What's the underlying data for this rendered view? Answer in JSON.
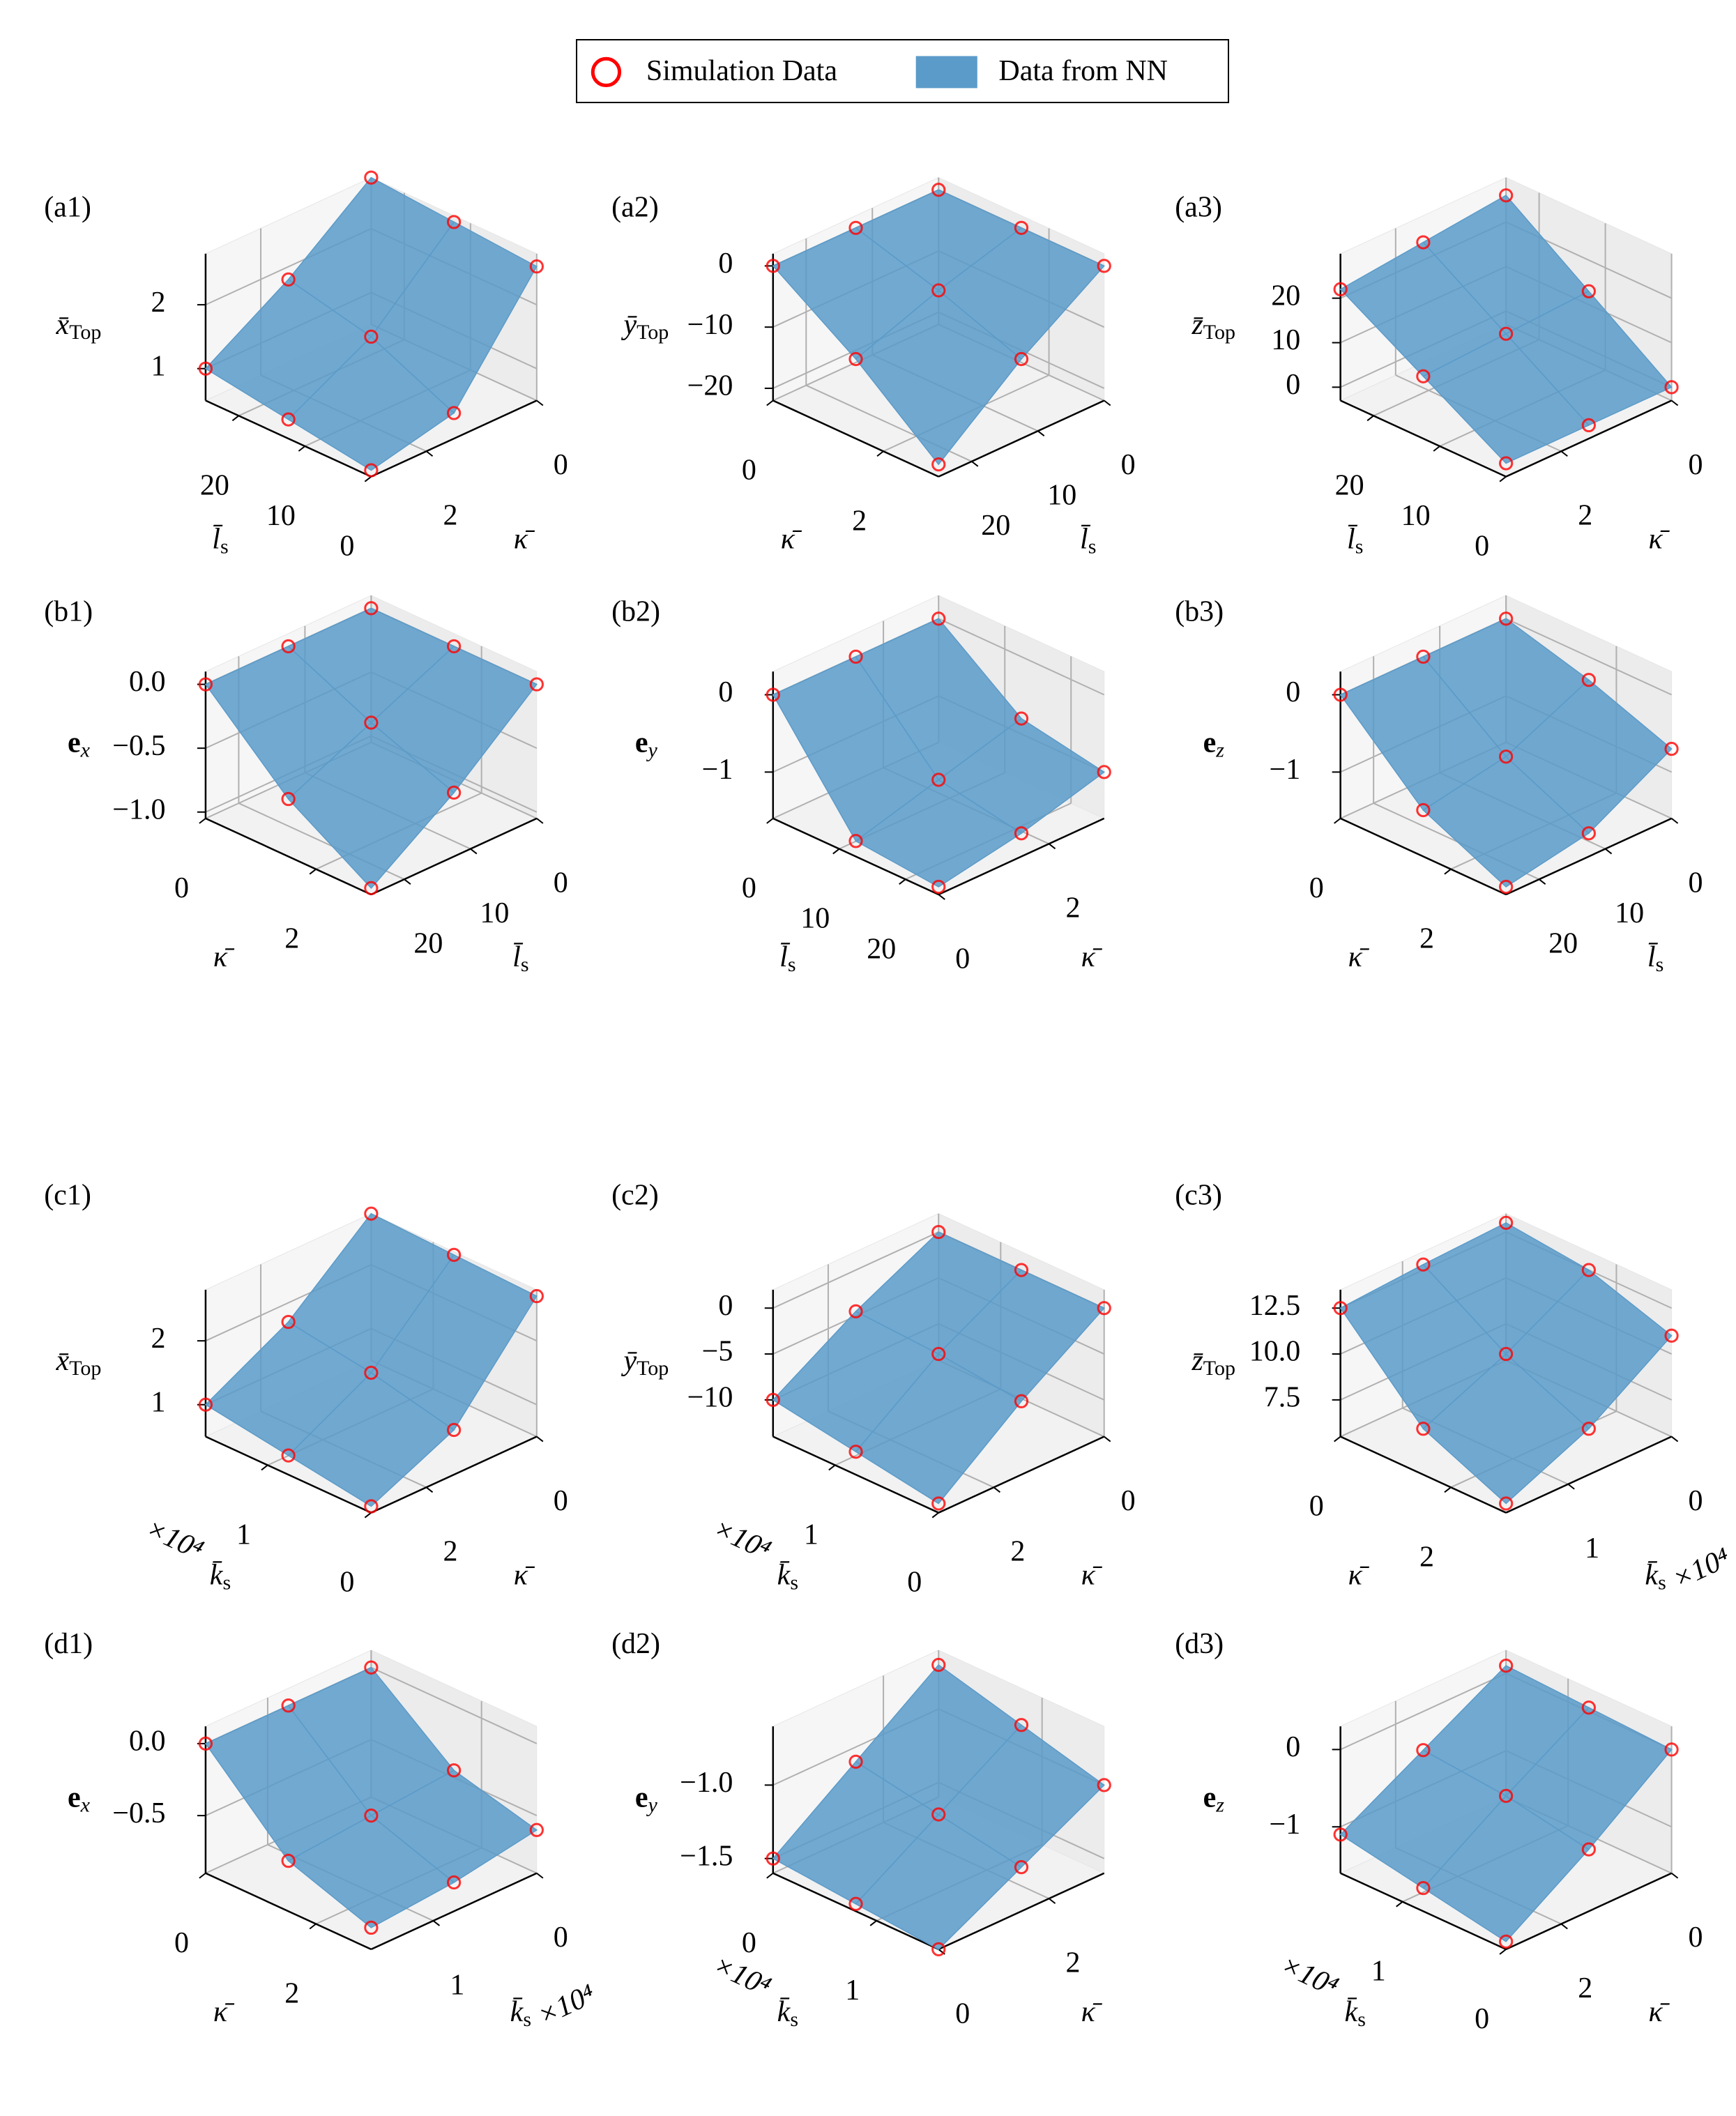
{
  "legend": {
    "items": [
      {
        "name": "Simulation Data",
        "color": "#ff0000"
      },
      {
        "name": "Data from NN",
        "color": "#5b9bc9"
      }
    ]
  },
  "chart_data": [
    {
      "type": "surface3d",
      "label": "(a1)",
      "xaxis": {
        "label": {
          "text": "l̄",
          "sub": "s"
        },
        "lim": [
          0,
          25
        ],
        "ticks": [
          0,
          10,
          20
        ]
      },
      "yaxis": {
        "label": {
          "text": "κ̄"
        },
        "lim": [
          3,
          0
        ],
        "ticks": [
          0,
          2
        ]
      },
      "zaxis": {
        "label": {
          "text": "x̄",
          "sub": "Top"
        },
        "lim": [
          0.5,
          2.8
        ],
        "ticks": [
          1,
          2
        ]
      },
      "x": [
        0,
        12.5,
        25
      ],
      "y": [
        0,
        1.5,
        3
      ],
      "z": [
        [
          2.6,
          0.9,
          0.6
        ],
        [
          2.7,
          1.5,
          0.8
        ],
        [
          2.8,
          1.8,
          1.0
        ]
      ]
    },
    {
      "type": "surface3d",
      "label": "(a2)",
      "xaxis": {
        "label": {
          "text": "κ̄"
        },
        "lim": [
          3,
          0
        ],
        "ticks": [
          0,
          2
        ]
      },
      "yaxis": {
        "label": {
          "text": "l̄",
          "sub": "s"
        },
        "lim": [
          25,
          0
        ],
        "ticks": [
          0,
          10,
          20
        ]
      },
      "zaxis": {
        "label": {
          "text": "ȳ",
          "sub": "Top"
        },
        "lim": [
          -22,
          2
        ],
        "ticks": [
          0,
          {
            "value": -10,
            "label": "−10"
          },
          {
            "value": -20,
            "label": "−20"
          }
        ]
      },
      "x": [
        0,
        1.5,
        3
      ],
      "y": [
        0,
        12.5,
        25
      ],
      "z": [
        [
          0,
          0,
          0
        ],
        [
          0,
          -4,
          -9
        ],
        [
          0,
          -9,
          -20
        ]
      ]
    },
    {
      "type": "surface3d",
      "label": "(a3)",
      "xaxis": {
        "label": {
          "text": "l̄",
          "sub": "s"
        },
        "lim": [
          0,
          25
        ],
        "ticks": [
          0,
          10,
          20
        ]
      },
      "yaxis": {
        "label": {
          "text": "κ̄"
        },
        "lim": [
          3,
          0
        ],
        "ticks": [
          0,
          2
        ]
      },
      "zaxis": {
        "label": {
          "text": "z̄",
          "sub": "Top"
        },
        "lim": [
          -3,
          30
        ],
        "ticks": [
          0,
          10,
          20
        ]
      },
      "x": [
        0,
        12.5,
        25
      ],
      "y": [
        0,
        1.5,
        3
      ],
      "z": [
        [
          0,
          0,
          0
        ],
        [
          13,
          12,
          11
        ],
        [
          26,
          24,
          22
        ]
      ]
    },
    {
      "type": "surface3d",
      "label": "(b1)",
      "xaxis": {
        "label": {
          "text": "κ̄"
        },
        "lim": [
          3,
          0
        ],
        "ticks": [
          0,
          2
        ]
      },
      "yaxis": {
        "label": {
          "text": "l̄",
          "sub": "s"
        },
        "lim": [
          25,
          0
        ],
        "ticks": [
          0,
          10,
          20
        ]
      },
      "zaxis": {
        "label": {
          "text": "e",
          "sub": "x",
          "bold": true
        },
        "lim": [
          -1.05,
          0.1
        ],
        "ticks": [
          {
            "value": 0,
            "label": "0.0"
          },
          {
            "value": -0.5,
            "label": "−0.5"
          },
          {
            "value": -1,
            "label": "−1.0"
          }
        ]
      },
      "x": [
        0,
        1.5,
        3
      ],
      "y": [
        0,
        12.5,
        25
      ],
      "z": [
        [
          0,
          0,
          0
        ],
        [
          0,
          -0.3,
          -0.6
        ],
        [
          0,
          -0.55,
          -1.0
        ]
      ]
    },
    {
      "type": "surface3d",
      "label": "(b2)",
      "xaxis": {
        "label": {
          "text": "l̄",
          "sub": "s"
        },
        "lim": [
          25,
          0
        ],
        "ticks": [
          0,
          10,
          20
        ]
      },
      "yaxis": {
        "label": {
          "text": "κ̄"
        },
        "lim": [
          0,
          3
        ],
        "ticks": [
          0,
          2
        ]
      },
      "zaxis": {
        "label": {
          "text": "e",
          "sub": "y",
          "bold": true
        },
        "lim": [
          -1.6,
          0.3
        ],
        "ticks": [
          0,
          {
            "value": -1,
            "label": "−1"
          }
        ]
      },
      "x": [
        0,
        12.5,
        25
      ],
      "y": [
        0,
        1.5,
        3
      ],
      "z": [
        [
          0,
          0,
          0
        ],
        [
          -1.4,
          -1.1,
          -0.8
        ],
        [
          -1.5,
          -1.3,
          -1.0
        ]
      ]
    },
    {
      "type": "surface3d",
      "label": "(b3)",
      "xaxis": {
        "label": {
          "text": "κ̄"
        },
        "lim": [
          3,
          0
        ],
        "ticks": [
          0,
          2
        ]
      },
      "yaxis": {
        "label": {
          "text": "l̄",
          "sub": "s"
        },
        "lim": [
          25,
          0
        ],
        "ticks": [
          0,
          10,
          20
        ]
      },
      "zaxis": {
        "label": {
          "text": "e",
          "sub": "z",
          "bold": true
        },
        "lim": [
          -1.6,
          0.3
        ],
        "ticks": [
          0,
          {
            "value": -1,
            "label": "−1"
          }
        ]
      },
      "x": [
        0,
        1.5,
        3
      ],
      "y": [
        0,
        12.5,
        25
      ],
      "z": [
        [
          0,
          0,
          0
        ],
        [
          -0.3,
          -0.8,
          -1.0
        ],
        [
          -0.7,
          -1.3,
          -1.5
        ]
      ]
    },
    {
      "type": "surface3d",
      "label": "(c1)",
      "xaxis": {
        "label": {
          "text": "k̄",
          "sub": "s"
        },
        "lim": [
          0,
          1.6
        ],
        "ticks": [
          0,
          1
        ],
        "multiplier": "×10⁴"
      },
      "yaxis": {
        "label": {
          "text": "κ̄"
        },
        "lim": [
          3,
          0
        ],
        "ticks": [
          0,
          2
        ]
      },
      "zaxis": {
        "label": {
          "text": "x̄",
          "sub": "Top"
        },
        "lim": [
          0.5,
          2.8
        ],
        "ticks": [
          1,
          2
        ]
      },
      "x": [
        0,
        0.8,
        1.6
      ],
      "y": [
        0,
        1.5,
        3
      ],
      "z": [
        [
          2.7,
          1.2,
          0.6
        ],
        [
          2.75,
          1.5,
          0.8
        ],
        [
          2.8,
          1.7,
          1.0
        ]
      ]
    },
    {
      "type": "surface3d",
      "label": "(c2)",
      "xaxis": {
        "label": {
          "text": "k̄",
          "sub": "s"
        },
        "lim": [
          0,
          1.6
        ],
        "ticks": [
          0,
          1
        ],
        "multiplier": "×10⁴"
      },
      "yaxis": {
        "label": {
          "text": "κ̄"
        },
        "lim": [
          3,
          0
        ],
        "ticks": [
          0,
          2
        ]
      },
      "zaxis": {
        "label": {
          "text": "ȳ",
          "sub": "Top"
        },
        "lim": [
          -14,
          2
        ],
        "ticks": [
          0,
          {
            "value": -5,
            "label": "−5"
          },
          {
            "value": -10,
            "label": "−10"
          }
        ]
      },
      "x": [
        0,
        0.8,
        1.6
      ],
      "y": [
        0,
        1.5,
        3
      ],
      "z": [
        [
          0,
          -6,
          -13
        ],
        [
          0,
          -5,
          -11.5
        ],
        [
          0,
          -4.5,
          -10
        ]
      ]
    },
    {
      "type": "surface3d",
      "label": "(c3)",
      "xaxis": {
        "label": {
          "text": "κ̄"
        },
        "lim": [
          3,
          0
        ],
        "ticks": [
          0,
          2
        ]
      },
      "yaxis": {
        "label": {
          "text": "k̄",
          "sub": "s"
        },
        "lim": [
          1.6,
          0
        ],
        "ticks": [
          0,
          1
        ],
        "multiplier": "×10⁴"
      },
      "zaxis": {
        "label": {
          "text": "z̄",
          "sub": "Top"
        },
        "lim": [
          5.5,
          13.5
        ],
        "ticks": [
          7.5,
          {
            "value": 10,
            "label": "10.0"
          },
          12.5
        ]
      },
      "x": [
        0,
        1.5,
        3
      ],
      "y": [
        0,
        0.8,
        1.6
      ],
      "z": [
        [
          13,
          12.8,
          12.5
        ],
        [
          12.5,
          10,
          8
        ],
        [
          11,
          8,
          6
        ]
      ]
    },
    {
      "type": "surface3d",
      "label": "(d1)",
      "xaxis": {
        "label": {
          "text": "κ̄"
        },
        "lim": [
          3,
          0
        ],
        "ticks": [
          0,
          2
        ]
      },
      "yaxis": {
        "label": {
          "text": "k̄",
          "sub": "s"
        },
        "lim": [
          1.6,
          0
        ],
        "ticks": [
          0,
          1
        ],
        "multiplier": "×10⁴"
      },
      "zaxis": {
        "label": {
          "text": "e",
          "sub": "x",
          "bold": true
        },
        "lim": [
          -0.9,
          0.12
        ],
        "ticks": [
          {
            "value": 0,
            "label": "0.0"
          },
          {
            "value": -0.5,
            "label": "−0.5"
          }
        ]
      },
      "x": [
        0,
        1.5,
        3
      ],
      "y": [
        0,
        0.8,
        1.6
      ],
      "z": [
        [
          0,
          0,
          0
        ],
        [
          -0.45,
          -0.5,
          -0.55
        ],
        [
          -0.6,
          -0.7,
          -0.75
        ]
      ]
    },
    {
      "type": "surface3d",
      "label": "(d2)",
      "xaxis": {
        "label": {
          "text": "k̄",
          "sub": "s"
        },
        "lim": [
          1.6,
          0
        ],
        "ticks": [
          0,
          1
        ],
        "multiplier": "×10⁴"
      },
      "yaxis": {
        "label": {
          "text": "κ̄"
        },
        "lim": [
          0,
          3
        ],
        "ticks": [
          0,
          2
        ]
      },
      "zaxis": {
        "label": {
          "text": "e",
          "sub": "y",
          "bold": true
        },
        "lim": [
          -1.6,
          -0.6
        ],
        "ticks": [
          {
            "value": -1,
            "label": "−1.0"
          },
          {
            "value": -1.5,
            "label": "−1.5"
          }
        ]
      },
      "x": [
        0,
        0.8,
        1.6
      ],
      "y": [
        0,
        1.5,
        3
      ],
      "z": [
        [
          -1.5,
          -1.1,
          -0.7
        ],
        [
          -1.55,
          -1.2,
          -0.85
        ],
        [
          -1.6,
          -1.3,
          -1.0
        ]
      ]
    },
    {
      "type": "surface3d",
      "label": "(d3)",
      "xaxis": {
        "label": {
          "text": "k̄",
          "sub": "s"
        },
        "lim": [
          0,
          1.6
        ],
        "ticks": [
          0,
          1
        ],
        "multiplier": "×10⁴"
      },
      "yaxis": {
        "label": {
          "text": "κ̄"
        },
        "lim": [
          3,
          0
        ],
        "ticks": [
          0,
          2
        ]
      },
      "zaxis": {
        "label": {
          "text": "e",
          "sub": "z",
          "bold": true
        },
        "lim": [
          -1.6,
          0.3
        ],
        "ticks": [
          0,
          {
            "value": -1,
            "label": "−1"
          }
        ]
      },
      "x": [
        0,
        0.8,
        1.6
      ],
      "y": [
        0,
        1.5,
        3
      ],
      "z": [
        [
          0,
          -0.8,
          -1.5
        ],
        [
          0.05,
          -0.6,
          -1.3
        ],
        [
          0.1,
          -0.5,
          -1.1
        ]
      ]
    }
  ]
}
